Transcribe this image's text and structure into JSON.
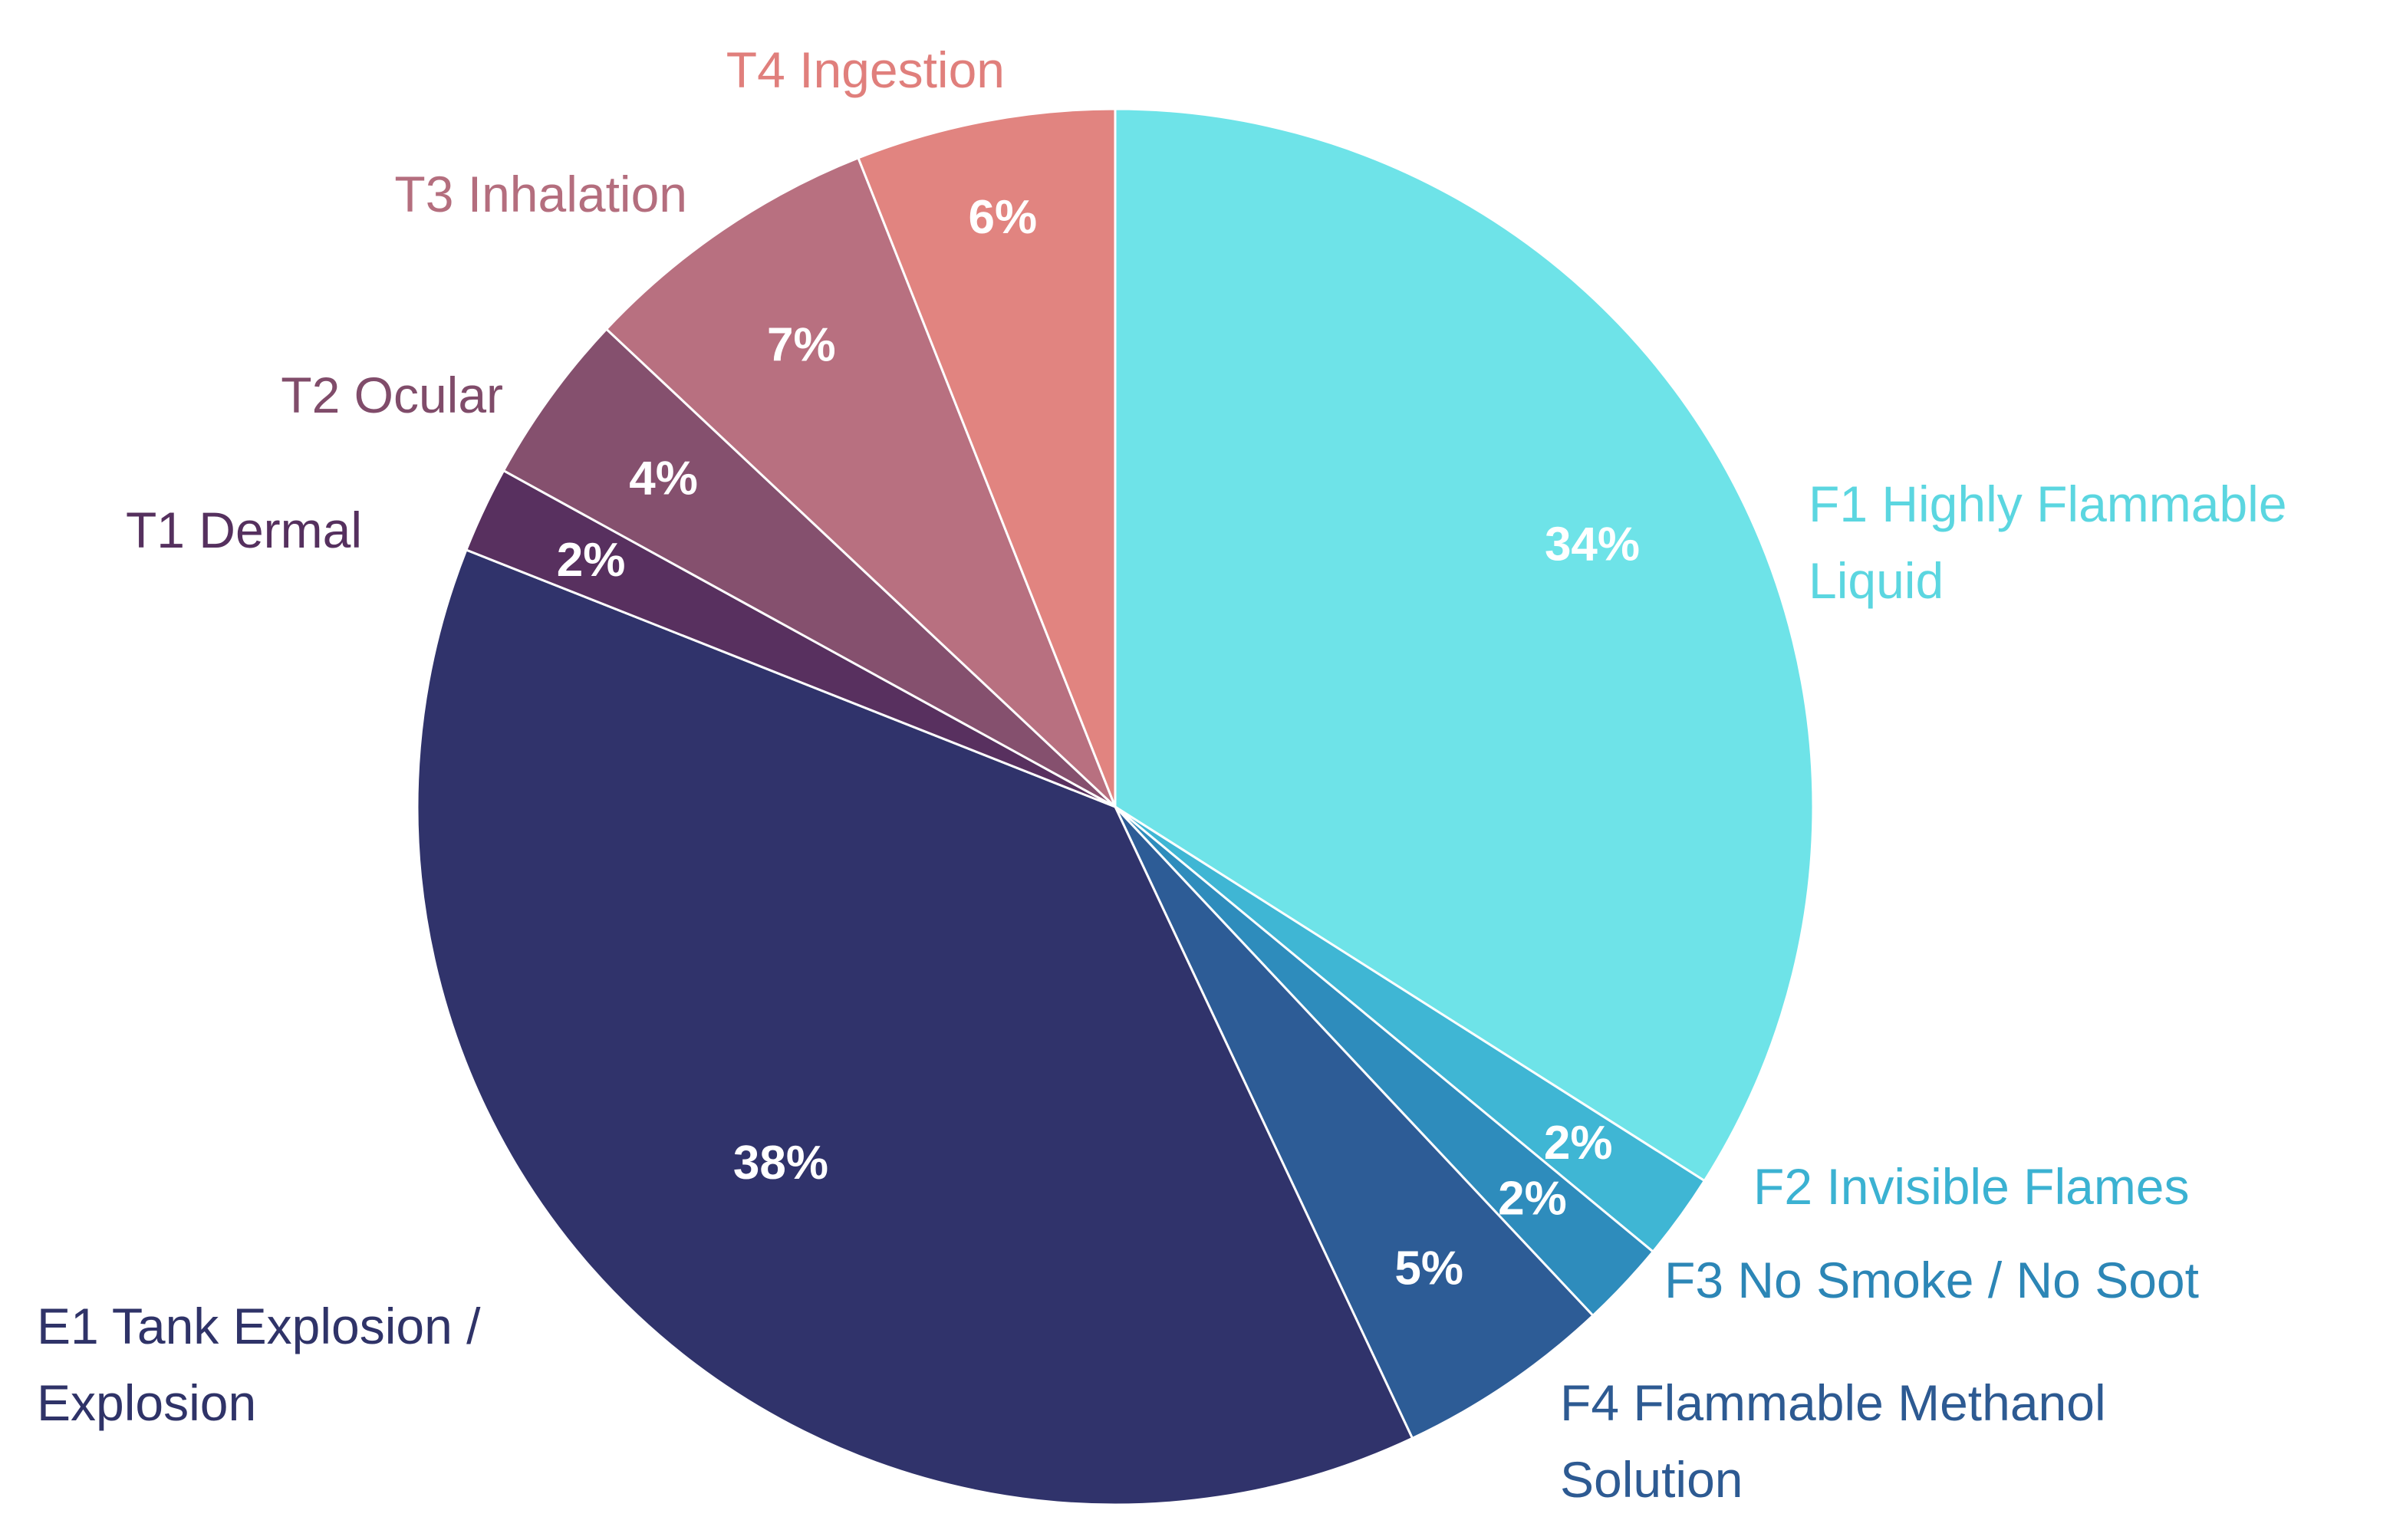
{
  "chart_data": {
    "type": "pie",
    "title": "",
    "start_angle_deg": 0,
    "direction": "clockwise",
    "slices": [
      {
        "label": "F1 Highly Flammable Liquid",
        "lines": [
          "F1 Highly Flammable",
          "Liquid"
        ],
        "value": 34,
        "value_label": "34%",
        "color": "#6EE3E8",
        "label_color": "#5BD6E0"
      },
      {
        "label": "F2 Invisible Flames",
        "lines": [
          "F2 Invisible Flames"
        ],
        "value": 2,
        "value_label": "2%",
        "color": "#3FB6D4",
        "label_color": "#3BB2D2"
      },
      {
        "label": "F3 No Smoke / No Soot",
        "lines": [
          "F3 No Smoke / No Soot"
        ],
        "value": 2,
        "value_label": "2%",
        "color": "#2E8CBC",
        "label_color": "#2C86B6"
      },
      {
        "label": "F4 Flammable Methanol Solution",
        "lines": [
          "F4 Flammable Methanol",
          "Solution"
        ],
        "value": 5,
        "value_label": "5%",
        "color": "#2D5C96",
        "label_color": "#2D5A92"
      },
      {
        "label": "E1 Tank Explosion / Explosion",
        "lines": [
          "E1 Tank Explosion /",
          "Explosion"
        ],
        "value": 38,
        "value_label": "38%",
        "color": "#30336B",
        "label_color": "#2F3368"
      },
      {
        "label": "T1 Dermal",
        "lines": [
          "T1 Dermal"
        ],
        "value": 2,
        "value_label": "2%",
        "color": "#58305F",
        "label_color": "#55305E"
      },
      {
        "label": "T2 Ocular",
        "lines": [
          "T2 Ocular"
        ],
        "value": 4,
        "value_label": "4%",
        "color": "#85506E",
        "label_color": "#804C6A"
      },
      {
        "label": "T3 Inhalation",
        "lines": [
          "T3 Inhalation"
        ],
        "value": 7,
        "value_label": "7%",
        "color": "#B87080",
        "label_color": "#B46E7E"
      },
      {
        "label": "T4 Ingestion",
        "lines": [
          "T4 Ingestion"
        ],
        "value": 6,
        "value_label": "6%",
        "color": "#E18480",
        "label_color": "#E07F7C"
      }
    ]
  }
}
